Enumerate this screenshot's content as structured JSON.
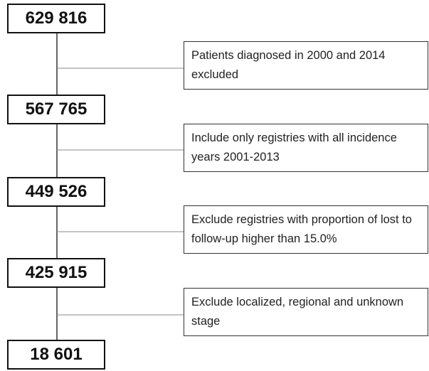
{
  "counts": [
    "629 816",
    "567 765",
    "449 526",
    "425 915",
    "18 601"
  ],
  "exclusions": [
    "Patients diagnosed in 2000 and 2014 excluded",
    "Include only registries with all incidence years 2001-2013",
    "Exclude registries with proportion of lost to follow-up higher than 15.0%",
    "Exclude localized, regional and unknown stage"
  ]
}
